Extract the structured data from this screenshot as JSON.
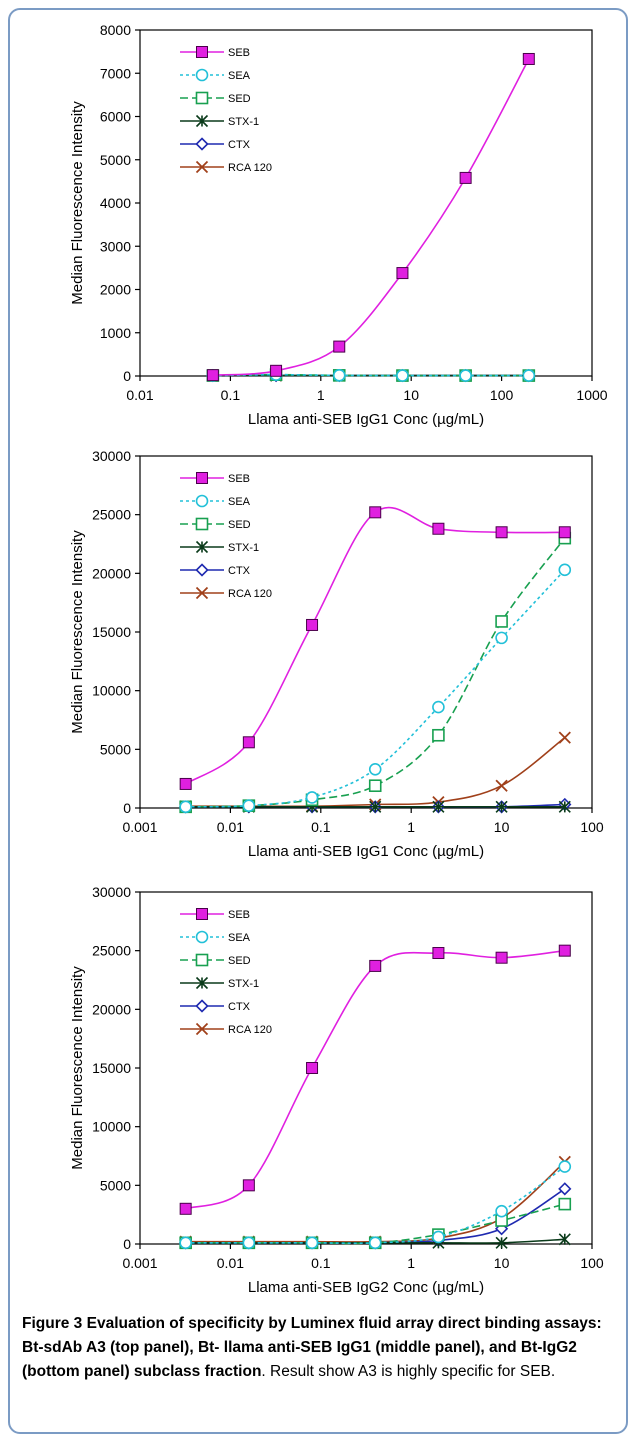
{
  "caption": {
    "label": "Figure 3",
    "title": "Evaluation of specificity by Luminex fluid array direct binding assays: Bt-sdAb A3 (top panel), Bt- llama anti-SEB IgG1 (middle panel), and Bt-IgG2 (bottom panel) subclass fraction",
    "text": "Result show A3 is highly specific for SEB."
  },
  "series_styles": [
    {
      "name": "SEB",
      "color": "#e020e0",
      "marker": "square-filled",
      "dash": "solid"
    },
    {
      "name": "SEA",
      "color": "#22c0d8",
      "marker": "circle-open",
      "dash": "dotted"
    },
    {
      "name": "SED",
      "color": "#18a050",
      "marker": "square-open",
      "dash": "dashed"
    },
    {
      "name": "STX-1",
      "color": "#0a3a1a",
      "marker": "cross",
      "dash": "solid"
    },
    {
      "name": "CTX",
      "color": "#1f2ab0",
      "marker": "diamond-open",
      "dash": "solid"
    },
    {
      "name": "RCA 120",
      "color": "#a0401a",
      "marker": "x",
      "dash": "solid"
    }
  ],
  "chart_data": [
    {
      "type": "line",
      "xscale": "log",
      "xlim": [
        0.01,
        1000
      ],
      "ylim": [
        0,
        8000
      ],
      "xticks": [
        "0.01",
        "0.1",
        "1",
        "10",
        "100",
        "1000"
      ],
      "yticks": [
        "0",
        "1000",
        "2000",
        "3000",
        "4000",
        "5000",
        "6000",
        "7000",
        "8000"
      ],
      "xlabel": "Llama anti-SEB IgG1 Conc (µg/mL)",
      "ylabel": "Median Fluorescence Intensity",
      "x": [
        0.064,
        0.32,
        1.6,
        8,
        40,
        200
      ],
      "series": [
        {
          "name": "SEB",
          "values": [
            20,
            120,
            680,
            2380,
            4580,
            7330
          ]
        },
        {
          "name": "SEA",
          "values": [
            10,
            30,
            15,
            10,
            10,
            10
          ]
        },
        {
          "name": "SED",
          "values": [
            10,
            30,
            15,
            10,
            10,
            10
          ]
        },
        {
          "name": "STX-1",
          "values": [
            10,
            10,
            10,
            10,
            10,
            10
          ]
        },
        {
          "name": "CTX",
          "values": [
            10,
            10,
            10,
            10,
            10,
            10
          ]
        },
        {
          "name": "RCA 120",
          "values": [
            10,
            10,
            10,
            10,
            10,
            10
          ]
        }
      ]
    },
    {
      "type": "line",
      "xscale": "log",
      "xlim": [
        0.001,
        100
      ],
      "ylim": [
        0,
        30000
      ],
      "xticks": [
        "0.001",
        "0.01",
        "0.1",
        "1",
        "10",
        "100"
      ],
      "yticks": [
        "0",
        "5000",
        "10000",
        "15000",
        "20000",
        "25000",
        "30000"
      ],
      "xlabel": "Llama anti-SEB IgG1 Conc (µg/mL)",
      "ylabel": "Median Fluorescence Intensity",
      "x": [
        0.0032,
        0.016,
        0.08,
        0.4,
        2,
        10,
        50
      ],
      "series": [
        {
          "name": "SEB",
          "values": [
            2050,
            5600,
            15600,
            25200,
            23800,
            23500,
            23500
          ]
        },
        {
          "name": "SEA",
          "values": [
            100,
            200,
            900,
            3300,
            8600,
            14500,
            20300
          ]
        },
        {
          "name": "SED",
          "values": [
            100,
            200,
            700,
            1900,
            6200,
            15900,
            23000
          ]
        },
        {
          "name": "STX-1",
          "values": [
            100,
            100,
            100,
            100,
            100,
            100,
            100
          ]
        },
        {
          "name": "CTX",
          "values": [
            100,
            100,
            100,
            100,
            100,
            100,
            300
          ]
        },
        {
          "name": "RCA 120",
          "values": [
            150,
            150,
            150,
            300,
            500,
            1900,
            6000
          ]
        }
      ]
    },
    {
      "type": "line",
      "xscale": "log",
      "xlim": [
        0.001,
        100
      ],
      "ylim": [
        0,
        30000
      ],
      "xticks": [
        "0.001",
        "0.01",
        "0.1",
        "1",
        "10",
        "100"
      ],
      "yticks": [
        "0",
        "5000",
        "10000",
        "15000",
        "20000",
        "25000",
        "30000"
      ],
      "xlabel": "Llama anti-SEB IgG2 Conc (µg/mL)",
      "ylabel": "Median Fluorescence Intensity",
      "x": [
        0.0032,
        0.016,
        0.08,
        0.4,
        2,
        10,
        50
      ],
      "series": [
        {
          "name": "SEB",
          "values": [
            3000,
            5000,
            15000,
            23700,
            24800,
            24400,
            25000
          ]
        },
        {
          "name": "SEA",
          "values": [
            100,
            100,
            100,
            100,
            600,
            2800,
            6600
          ]
        },
        {
          "name": "SED",
          "values": [
            100,
            100,
            100,
            100,
            800,
            2000,
            3400
          ]
        },
        {
          "name": "STX-1",
          "values": [
            100,
            100,
            100,
            100,
            100,
            100,
            400
          ]
        },
        {
          "name": "CTX",
          "values": [
            100,
            100,
            100,
            100,
            300,
            1300,
            4700
          ]
        },
        {
          "name": "RCA 120",
          "values": [
            200,
            200,
            200,
            200,
            500,
            2200,
            7000
          ]
        }
      ]
    }
  ]
}
